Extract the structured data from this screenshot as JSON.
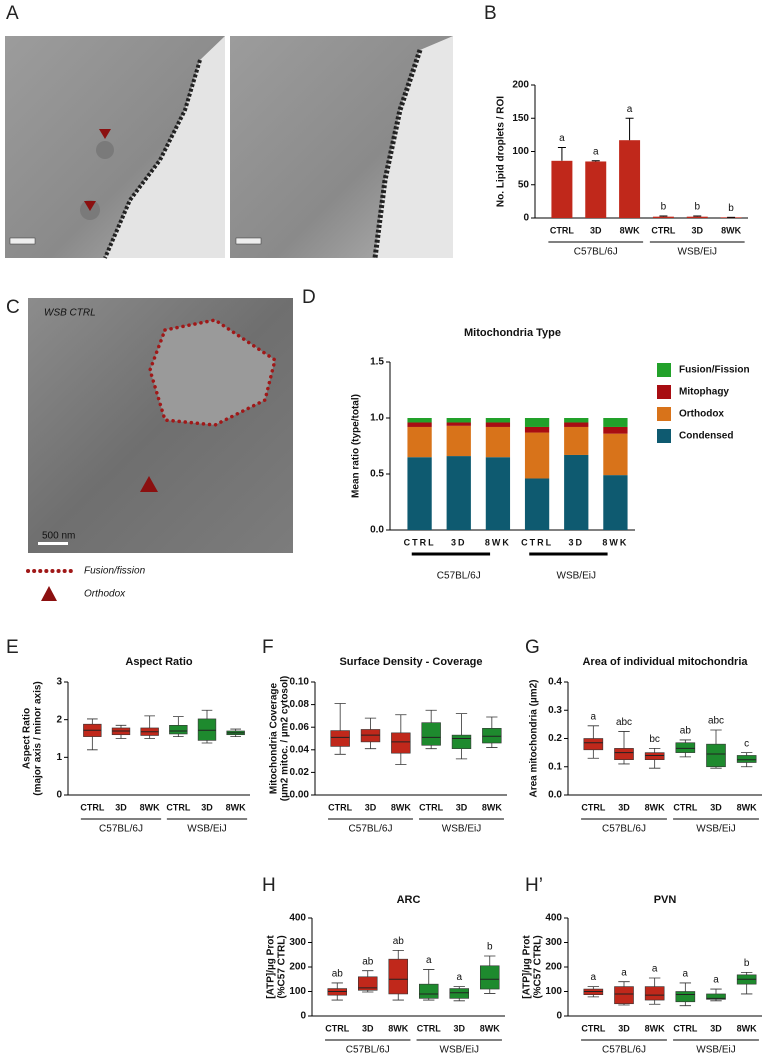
{
  "panel_labels": [
    "A",
    "B",
    "C",
    "D",
    "E",
    "F",
    "G",
    "H",
    "H’"
  ],
  "image_c": {
    "caption": "WSB CTRL",
    "scale": "500 nm"
  },
  "legend_c": [
    "Fusion/fission",
    "Orthodox"
  ],
  "chart_data": [
    {
      "type": "bar",
      "ylabel": [
        "No. Lipid droplets / ROI"
      ],
      "categories": [
        "CTRL",
        "3D",
        "8WK",
        "CTRL",
        "3D",
        "8WK"
      ],
      "groups": [
        "C57BL/6J",
        "WSB/EiJ"
      ],
      "values": [
        86,
        85,
        117,
        2,
        2,
        1
      ],
      "errors": [
        20,
        1,
        33,
        1,
        1,
        0
      ],
      "annotations": [
        "a",
        "a",
        "a",
        "b",
        "b",
        "b"
      ],
      "color": "#c0281b",
      "ylim": [
        0,
        200
      ],
      "yticks": [
        0,
        50,
        100,
        150,
        200
      ]
    },
    {
      "type": "stacked_bar",
      "title": "Mitochondria Type",
      "ylabel": [
        "Mean ratio (type/total)"
      ],
      "categories": [
        "CTRL",
        "3D",
        "8WK",
        "CTRL",
        "3D",
        "8WK"
      ],
      "groups": [
        "C57BL/6J",
        "WSB/EiJ"
      ],
      "series": [
        {
          "name": "Condensed",
          "color": "#0e5a70",
          "values": [
            0.65,
            0.66,
            0.65,
            0.46,
            0.67,
            0.49
          ]
        },
        {
          "name": "Orthodox",
          "color": "#d8731a",
          "values": [
            0.27,
            0.27,
            0.27,
            0.41,
            0.25,
            0.37
          ]
        },
        {
          "name": "Mitophagy",
          "color": "#a80d12",
          "values": [
            0.04,
            0.03,
            0.04,
            0.05,
            0.04,
            0.06
          ]
        },
        {
          "name": "Fusion/Fission",
          "color": "#22a12a",
          "values": [
            0.04,
            0.04,
            0.04,
            0.08,
            0.04,
            0.08
          ]
        }
      ],
      "ylim": [
        0,
        1.5
      ],
      "yticks": [
        {
          "value": 0,
          "label": "0.0"
        },
        {
          "value": 0.5,
          "label": "0.5"
        },
        {
          "value": 1,
          "label": "1.0"
        },
        {
          "value": 1.5,
          "label": "1.5"
        }
      ]
    },
    {
      "type": "box",
      "title": "Aspect Ratio",
      "ylabel": [
        "Aspect Ratio",
        "(major axis / minor axis)"
      ],
      "categories": [
        "CTRL",
        "3D",
        "8WK",
        "CTRL",
        "3D",
        "8WK"
      ],
      "groups": [
        "C57BL/6J",
        "WSB/EiJ"
      ],
      "colors": [
        "#c0281b",
        "#1e8a2e"
      ],
      "boxes": [
        {
          "min": 1.2,
          "q1": 1.55,
          "median": 1.72,
          "q3": 1.88,
          "max": 2.02
        },
        {
          "min": 1.5,
          "q1": 1.6,
          "median": 1.7,
          "q3": 1.78,
          "max": 1.85
        },
        {
          "min": 1.5,
          "q1": 1.58,
          "median": 1.68,
          "q3": 1.78,
          "max": 2.1
        },
        {
          "min": 1.55,
          "q1": 1.62,
          "median": 1.7,
          "q3": 1.85,
          "max": 2.08
        },
        {
          "min": 1.38,
          "q1": 1.45,
          "median": 1.72,
          "q3": 2.02,
          "max": 2.25
        },
        {
          "min": 1.55,
          "q1": 1.6,
          "median": 1.65,
          "q3": 1.7,
          "max": 1.75
        }
      ],
      "ylim": [
        0,
        3
      ],
      "yticks": [
        0,
        1,
        2,
        3
      ]
    },
    {
      "type": "box",
      "title": "Surface Density - Coverage",
      "ylabel": [
        "Mitochondria Coverage",
        "(µm2 mitoc. / µm2 cytosol)"
      ],
      "categories": [
        "CTRL",
        "3D",
        "8WK",
        "CTRL",
        "3D",
        "8WK"
      ],
      "groups": [
        "C57BL/6J",
        "WSB/EiJ"
      ],
      "colors": [
        "#c0281b",
        "#1e8a2e"
      ],
      "boxes": [
        {
          "min": 0.036,
          "q1": 0.043,
          "median": 0.051,
          "q3": 0.057,
          "max": 0.081
        },
        {
          "min": 0.041,
          "q1": 0.047,
          "median": 0.053,
          "q3": 0.058,
          "max": 0.068
        },
        {
          "min": 0.027,
          "q1": 0.037,
          "median": 0.047,
          "q3": 0.055,
          "max": 0.071
        },
        {
          "min": 0.041,
          "q1": 0.044,
          "median": 0.051,
          "q3": 0.064,
          "max": 0.075
        },
        {
          "min": 0.032,
          "q1": 0.041,
          "median": 0.05,
          "q3": 0.053,
          "max": 0.072
        },
        {
          "min": 0.042,
          "q1": 0.046,
          "median": 0.052,
          "q3": 0.059,
          "max": 0.069
        }
      ],
      "ylim": [
        0,
        0.1
      ],
      "yticks": [
        {
          "value": 0,
          "label": "0.00"
        },
        {
          "value": 0.02,
          "label": "0.02"
        },
        {
          "value": 0.04,
          "label": "0.04"
        },
        {
          "value": 0.06,
          "label": "0.06"
        },
        {
          "value": 0.08,
          "label": "0.08"
        },
        {
          "value": 0.1,
          "label": "0.10"
        }
      ]
    },
    {
      "type": "box",
      "title": "Area of individual mitochondria",
      "ylabel": [
        "Area mitochondria (µm2)"
      ],
      "categories": [
        "CTRL",
        "3D",
        "8WK",
        "CTRL",
        "3D",
        "8WK"
      ],
      "groups": [
        "C57BL/6J",
        "WSB/EiJ"
      ],
      "colors": [
        "#c0281b",
        "#1e8a2e"
      ],
      "boxes": [
        {
          "min": 0.13,
          "q1": 0.16,
          "median": 0.185,
          "q3": 0.2,
          "max": 0.245
        },
        {
          "min": 0.11,
          "q1": 0.125,
          "median": 0.15,
          "q3": 0.165,
          "max": 0.225
        },
        {
          "min": 0.095,
          "q1": 0.125,
          "median": 0.14,
          "q3": 0.15,
          "max": 0.165
        },
        {
          "min": 0.135,
          "q1": 0.15,
          "median": 0.165,
          "q3": 0.185,
          "max": 0.195
        },
        {
          "min": 0.095,
          "q1": 0.1,
          "median": 0.145,
          "q3": 0.18,
          "max": 0.23
        },
        {
          "min": 0.1,
          "q1": 0.115,
          "median": 0.125,
          "q3": 0.14,
          "max": 0.15
        }
      ],
      "annotations": [
        "a",
        "abc",
        "bc",
        "ab",
        "abc",
        "c"
      ],
      "ylim": [
        0,
        0.4
      ],
      "yticks": [
        {
          "value": 0,
          "label": "0.0"
        },
        {
          "value": 0.1,
          "label": "0.1"
        },
        {
          "value": 0.2,
          "label": "0.2"
        },
        {
          "value": 0.3,
          "label": "0.3"
        },
        {
          "value": 0.4,
          "label": "0.4"
        }
      ]
    },
    {
      "type": "box",
      "title": "ARC",
      "ylabel": [
        "[ATP]/µg Prot",
        "(%C57 CTRL)"
      ],
      "categories": [
        "CTRL",
        "3D",
        "8WK",
        "CTRL",
        "3D",
        "8WK"
      ],
      "groups": [
        "C57BL/6J",
        "WSB/EiJ"
      ],
      "colors": [
        "#c0281b",
        "#1e8a2e"
      ],
      "boxes": [
        {
          "min": 65,
          "q1": 85,
          "median": 100,
          "q3": 112,
          "max": 135
        },
        {
          "min": 98,
          "q1": 105,
          "median": 115,
          "q3": 160,
          "max": 185
        },
        {
          "min": 65,
          "q1": 90,
          "median": 150,
          "q3": 232,
          "max": 268
        },
        {
          "min": 65,
          "q1": 72,
          "median": 90,
          "q3": 130,
          "max": 190
        },
        {
          "min": 62,
          "q1": 72,
          "median": 95,
          "q3": 112,
          "max": 120
        },
        {
          "min": 92,
          "q1": 110,
          "median": 150,
          "q3": 205,
          "max": 245
        }
      ],
      "annotations": [
        "ab",
        "ab",
        "ab",
        "a",
        "a",
        "b"
      ],
      "ylim": [
        0,
        400
      ],
      "yticks": [
        0,
        100,
        200,
        300,
        400
      ]
    },
    {
      "type": "box",
      "title": "PVN",
      "ylabel": [
        "[ATP]/µg Prot",
        "(%C57 CTRL)"
      ],
      "categories": [
        "CTRL",
        "3D",
        "8WK",
        "CTRL",
        "3D",
        "8WK"
      ],
      "groups": [
        "C57BL/6J",
        "WSB/EiJ"
      ],
      "colors": [
        "#c0281b",
        "#1e8a2e"
      ],
      "boxes": [
        {
          "min": 78,
          "q1": 87,
          "median": 100,
          "q3": 110,
          "max": 120
        },
        {
          "min": 45,
          "q1": 50,
          "median": 90,
          "q3": 120,
          "max": 140
        },
        {
          "min": 48,
          "q1": 65,
          "median": 85,
          "q3": 120,
          "max": 155
        },
        {
          "min": 42,
          "q1": 58,
          "median": 88,
          "q3": 100,
          "max": 135
        },
        {
          "min": 62,
          "q1": 68,
          "median": 72,
          "q3": 90,
          "max": 110
        },
        {
          "min": 90,
          "q1": 130,
          "median": 150,
          "q3": 168,
          "max": 178
        }
      ],
      "annotations": [
        "a",
        "a",
        "a",
        "a",
        "a",
        "b"
      ],
      "ylim": [
        0,
        400
      ],
      "yticks": [
        0,
        100,
        200,
        300,
        400
      ]
    }
  ]
}
